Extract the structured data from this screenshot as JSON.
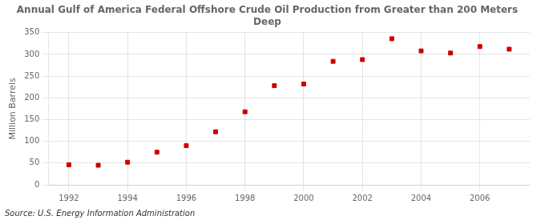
{
  "chart_data": {
    "type": "scatter",
    "title": "Annual Gulf of America Federal Offshore Crude Oil Production from Greater than 200 Meters\nDeep",
    "ylabel": "Million Barrels",
    "source": "Source: U.S. Energy Information Administration",
    "x": [
      1992,
      1993,
      1994,
      1995,
      1996,
      1997,
      1998,
      1999,
      2000,
      2001,
      2002,
      2003,
      2004,
      2005,
      2006,
      2007
    ],
    "values": [
      46,
      45,
      52,
      75,
      90,
      122,
      168,
      228,
      232,
      284,
      288,
      336,
      308,
      303,
      318,
      312
    ],
    "color": "#cc0000",
    "marker": "square",
    "xlim": [
      1991.3,
      2007.7
    ],
    "xticks": [
      1992,
      1994,
      1996,
      1998,
      2000,
      2002,
      2004,
      2006
    ],
    "ylim": [
      0,
      350
    ],
    "yticks": [
      0,
      50,
      100,
      150,
      200,
      250,
      300,
      350
    ],
    "grid": true
  }
}
